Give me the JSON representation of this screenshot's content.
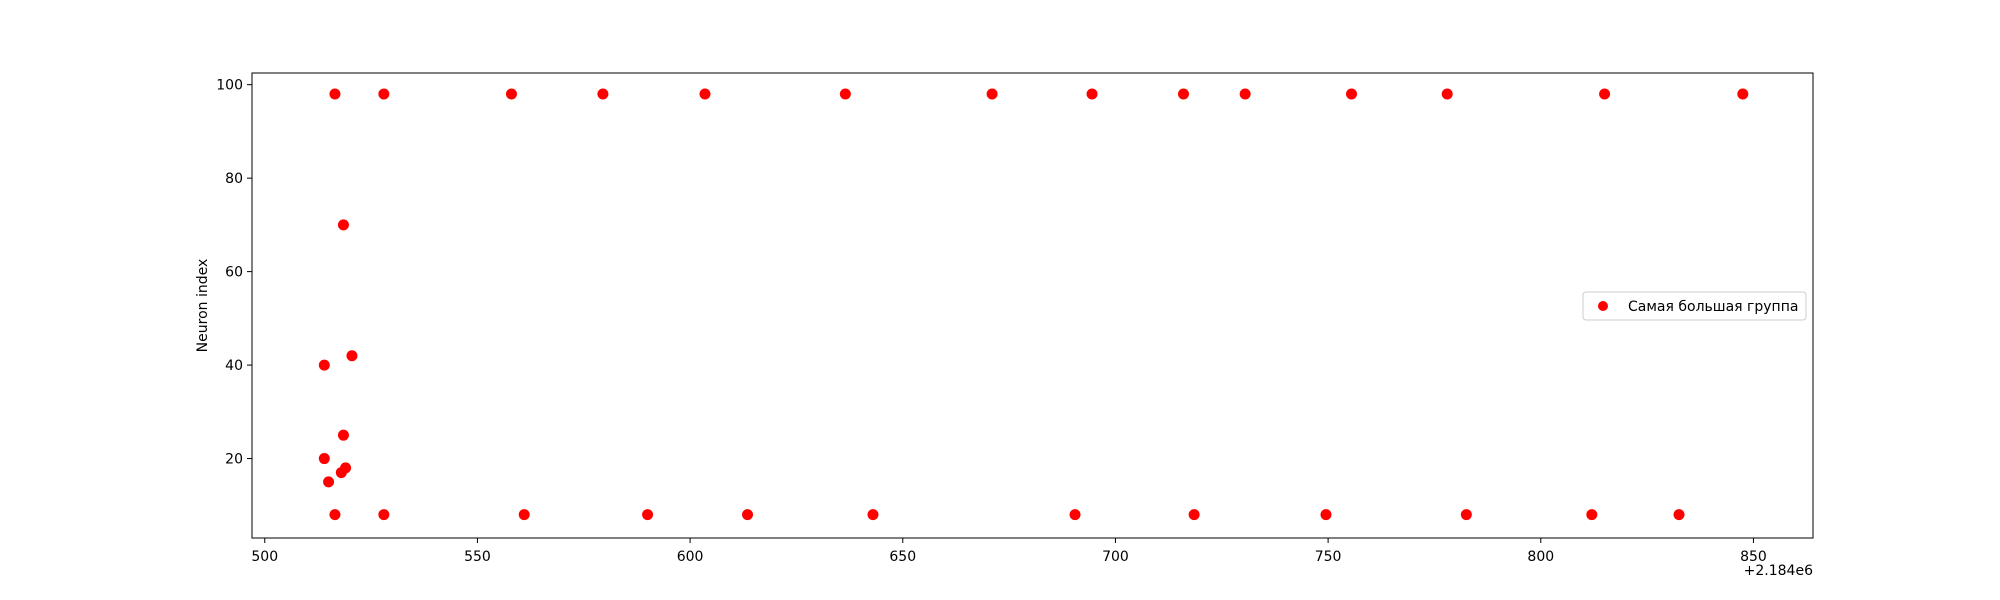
{
  "chart_data": {
    "type": "scatter",
    "title": "",
    "xlabel": "",
    "ylabel": "Neuron index",
    "x_offset_label": "+2.184e6",
    "xlim": [
      497,
      864
    ],
    "ylim": [
      3,
      102.5
    ],
    "xticks": [
      500,
      550,
      600,
      650,
      700,
      750,
      800,
      850
    ],
    "yticks": [
      20,
      40,
      60,
      80,
      100
    ],
    "grid": false,
    "legend_position": "center-right",
    "series": [
      {
        "name": "Самая большая группа",
        "color": "#ff0000",
        "points": [
          {
            "x": 516.5,
            "y": 98
          },
          {
            "x": 528,
            "y": 98
          },
          {
            "x": 558,
            "y": 98
          },
          {
            "x": 579.5,
            "y": 98
          },
          {
            "x": 603.5,
            "y": 98
          },
          {
            "x": 636.5,
            "y": 98
          },
          {
            "x": 671,
            "y": 98
          },
          {
            "x": 694.5,
            "y": 98
          },
          {
            "x": 716,
            "y": 98
          },
          {
            "x": 730.5,
            "y": 98
          },
          {
            "x": 755.5,
            "y": 98
          },
          {
            "x": 778,
            "y": 98
          },
          {
            "x": 815,
            "y": 98
          },
          {
            "x": 847.5,
            "y": 98
          },
          {
            "x": 518.5,
            "y": 70
          },
          {
            "x": 520.5,
            "y": 42
          },
          {
            "x": 514,
            "y": 40
          },
          {
            "x": 518.5,
            "y": 25
          },
          {
            "x": 514,
            "y": 20
          },
          {
            "x": 519,
            "y": 18
          },
          {
            "x": 518,
            "y": 17
          },
          {
            "x": 515,
            "y": 15
          },
          {
            "x": 516.5,
            "y": 8
          },
          {
            "x": 528,
            "y": 8
          },
          {
            "x": 561,
            "y": 8
          },
          {
            "x": 590,
            "y": 8
          },
          {
            "x": 613.5,
            "y": 8
          },
          {
            "x": 643,
            "y": 8
          },
          {
            "x": 690.5,
            "y": 8
          },
          {
            "x": 718.5,
            "y": 8
          },
          {
            "x": 749.5,
            "y": 8
          },
          {
            "x": 782.5,
            "y": 8
          },
          {
            "x": 812,
            "y": 8
          },
          {
            "x": 832.5,
            "y": 8
          }
        ]
      }
    ]
  }
}
